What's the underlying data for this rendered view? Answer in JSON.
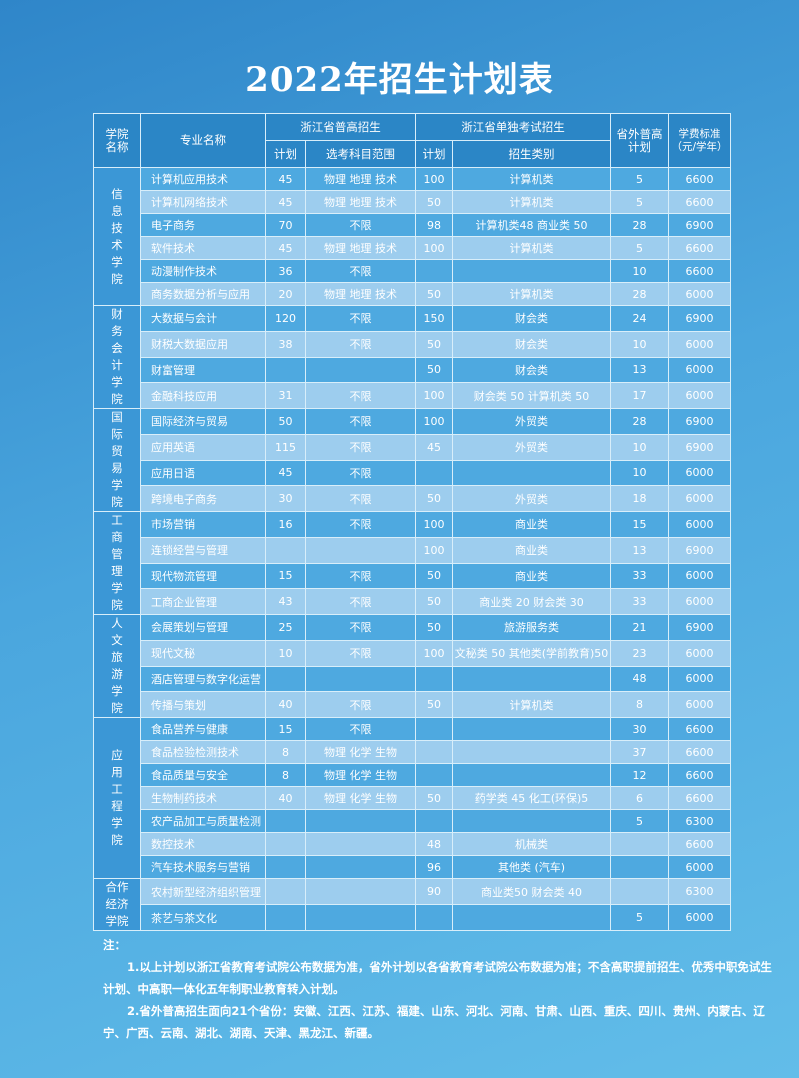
{
  "title": "2022年招生计划表",
  "headers": {
    "college": "学院名称",
    "major": "专业名称",
    "zj_general": "浙江省普高招生",
    "zj_separate": "浙江省单独考试招生",
    "outside": "省外普高计划",
    "fee": "学费标准（元/学年）",
    "plan": "计划",
    "subjects": "选考科目范围",
    "plan2": "计划",
    "category": "招生类别"
  },
  "colleges": [
    {
      "name": "信息技术学院",
      "rows": [
        [
          "计算机应用技术",
          "45",
          "物理 地理  技术",
          "100",
          "计算机类",
          "5",
          "6600"
        ],
        [
          "计算机网络技术",
          "45",
          "物理 地理  技术",
          "50",
          "计算机类",
          "5",
          "6600"
        ],
        [
          "电子商务",
          "70",
          "不限",
          "98",
          "计算机类48  商业类 50",
          "28",
          "6900"
        ],
        [
          "软件技术",
          "45",
          "物理 地理  技术",
          "100",
          "计算机类",
          "5",
          "6600"
        ],
        [
          "动漫制作技术",
          "36",
          "不限",
          "",
          "",
          "10",
          "6600"
        ],
        [
          "商务数据分析与应用",
          "20",
          "物理 地理  技术",
          "50",
          "计算机类",
          "28",
          "6000"
        ]
      ]
    },
    {
      "name": "财务会计学院",
      "rows": [
        [
          "大数据与会计",
          "120",
          "不限",
          "150",
          "财会类",
          "24",
          "6900"
        ],
        [
          "财税大数据应用",
          "38",
          "不限",
          "50",
          "财会类",
          "10",
          "6000"
        ],
        [
          "财富管理",
          "",
          "",
          "50",
          "财会类",
          "13",
          "6000"
        ],
        [
          "金融科技应用",
          "31",
          "不限",
          "100",
          "财会类 50  计算机类 50",
          "17",
          "6000"
        ]
      ]
    },
    {
      "name": "国际贸易学院",
      "rows": [
        [
          "国际经济与贸易",
          "50",
          "不限",
          "100",
          "外贸类",
          "28",
          "6900"
        ],
        [
          "应用英语",
          "115",
          "不限",
          "45",
          "外贸类",
          "10",
          "6900"
        ],
        [
          "应用日语",
          "45",
          "不限",
          "",
          "",
          "10",
          "6000"
        ],
        [
          "跨境电子商务",
          "30",
          "不限",
          "50",
          "外贸类",
          "18",
          "6000"
        ]
      ]
    },
    {
      "name": "工商管理学院",
      "rows": [
        [
          "市场营销",
          "16",
          "不限",
          "100",
          "商业类",
          "15",
          "6000"
        ],
        [
          "连锁经营与管理",
          "",
          "",
          "100",
          "商业类",
          "13",
          "6900"
        ],
        [
          "现代物流管理",
          "15",
          "不限",
          "50",
          "商业类",
          "33",
          "6000"
        ],
        [
          "工商企业管理",
          "43",
          "不限",
          "50",
          "商业类 20  财会类 30",
          "33",
          "6000"
        ]
      ]
    },
    {
      "name": "人文旅游学院",
      "rows": [
        [
          "会展策划与管理",
          "25",
          "不限",
          "50",
          "旅游服务类",
          "21",
          "6900"
        ],
        [
          "现代文秘",
          "10",
          "不限",
          "100",
          "文秘类 50 其他类(学前教育)50",
          "23",
          "6000"
        ],
        [
          "酒店管理与数字化运营",
          "",
          "",
          "",
          "",
          "48",
          "6000"
        ],
        [
          "传播与策划",
          "40",
          "不限",
          "50",
          "计算机类",
          "8",
          "6000"
        ]
      ]
    },
    {
      "name": "应用工程学院",
      "rows": [
        [
          "食品营养与健康",
          "15",
          "不限",
          "",
          "",
          "30",
          "6600"
        ],
        [
          "食品检验检测技术",
          "8",
          "物理 化学 生物",
          "",
          "",
          "37",
          "6600"
        ],
        [
          "食品质量与安全",
          "8",
          "物理 化学 生物",
          "",
          "",
          "12",
          "6600"
        ],
        [
          "生物制药技术",
          "40",
          "物理 化学 生物",
          "50",
          "药学类 45  化工(环保)5",
          "6",
          "6600"
        ],
        [
          "农产品加工与质量检测",
          "",
          "",
          "",
          "",
          "5",
          "6300"
        ],
        [
          "数控技术",
          "",
          "",
          "48",
          "机械类",
          "",
          "6600"
        ],
        [
          "汽车技术服务与营销",
          "",
          "",
          "96",
          "其他类 (汽车)",
          "",
          "6000"
        ]
      ]
    },
    {
      "name": "合作经济学院",
      "rows": [
        [
          "农村新型经济组织管理",
          "",
          "",
          "90",
          "商业类50  财会类 40",
          "",
          "6300"
        ],
        [
          "茶艺与茶文化",
          "",
          "",
          "",
          "",
          "5",
          "6000"
        ]
      ]
    }
  ],
  "notes": {
    "heading": "注：",
    "items": [
      "1.以上计划以浙江省教育考试院公布数据为准，省外计划以各省教育考试院公布数据为准；不含高职提前招生、优秀中职免试生计划、中高职一体化五年制职业教育转入计划。",
      "2.省外普高招生面向21个省份：安徽、江西、江苏、福建、山东、河北、河南、甘肃、山西、重庆、四川、贵州、内蒙古、辽宁、广西、云南、湖北、湖南、天津、黑龙江、新疆。"
    ]
  },
  "colors": {
    "header": "#2b86c6",
    "row_dark": "#4ea9e0",
    "row_light": "#9dcdee",
    "college": "#3b97d6",
    "grid": "#d8eefa"
  }
}
